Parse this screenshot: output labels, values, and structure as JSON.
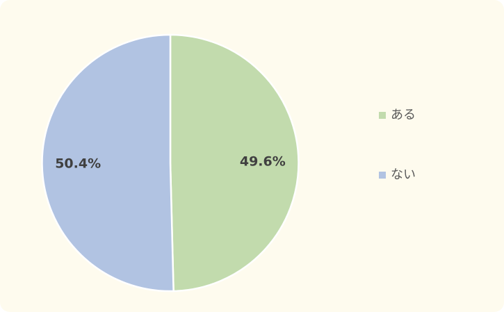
{
  "chart_data": {
    "type": "pie",
    "title": "",
    "categories": [
      "ある",
      "ない"
    ],
    "values": [
      49.6,
      50.4
    ],
    "data_labels": [
      "49.6%",
      "50.4%"
    ],
    "colors": [
      "#c2dbad",
      "#b1c3e2"
    ],
    "start_angle": "12 o'clock",
    "direction": "clockwise",
    "legend_position": "right"
  },
  "legend": {
    "items": [
      {
        "label": "ある",
        "color": "#c2dbad"
      },
      {
        "label": "ない",
        "color": "#b1c3e2"
      }
    ]
  }
}
